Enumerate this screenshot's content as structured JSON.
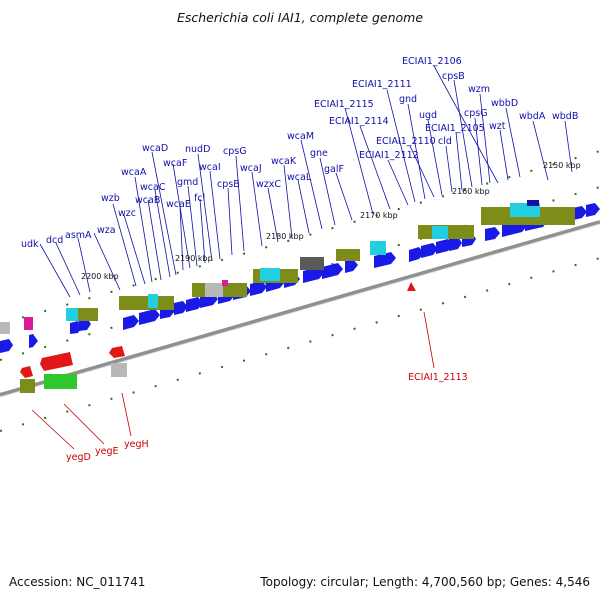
{
  "title": "Escherichia coli IAI1, complete genome",
  "footer": {
    "accession": "Accession: NC_011741",
    "summary": "Topology: circular; Length: 4,700,560 bp; Genes: 4,546"
  },
  "colors": {
    "forward_gene": "#1a1ae6",
    "reverse_gene": "#e01818",
    "olive": "#7e8c1a",
    "green": "#2ec82e",
    "cyan": "#22cfe0",
    "gray": "#b8b8b8",
    "magenta": "#e0189c",
    "label_blue": "#1010a8",
    "label_red": "#cc0000"
  },
  "ticks": [
    "2150 kbp",
    "2160 kbp",
    "2170 kbp",
    "2180 kbp",
    "2190 kbp",
    "2200 kbp"
  ],
  "genes_forward": [
    "udk",
    "dcd",
    "asmA",
    "wza",
    "wzb",
    "wzc",
    "wcaA",
    "wcaB",
    "wcaC",
    "wcaD",
    "wcaE",
    "wcaF",
    "gmd",
    "fcl",
    "nudD",
    "wcaI",
    "cpsB",
    "cpsG",
    "wcaJ",
    "wzxC",
    "wcaK",
    "wcaL",
    "wcaM",
    "gne",
    "galF",
    "ECIAI1_2115",
    "ECIAI1_2114",
    "ECIAI1_2112",
    "ECIAI1_2111",
    "gnd",
    "ECIAI1_2110",
    "ugd",
    "cld",
    "ECIAI1_2106",
    "ECIAI1_2105",
    "cpsB",
    "cpsG",
    "wzm",
    "wzt",
    "wbbD",
    "wbdA",
    "wbdB"
  ],
  "genes_reverse": [
    "ECIAI1_2113",
    "yegD",
    "yegE",
    "yegH"
  ]
}
